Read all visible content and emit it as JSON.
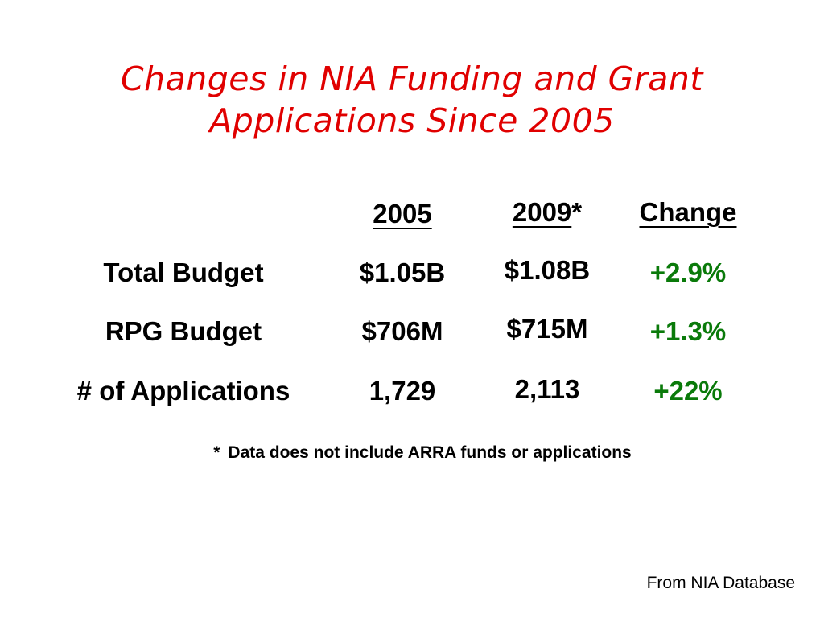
{
  "slide": {
    "title_line1": "Changes in NIA Funding and Grant",
    "title_line2": "Applications Since 2005",
    "title_color": "#e00000",
    "change_color": "#0a7a0a"
  },
  "table": {
    "headers": {
      "col_2005": "2005",
      "col_2009": "2009",
      "col_2009_marker": "*",
      "col_change": "Change"
    },
    "rows": [
      {
        "label": "Total Budget",
        "v2005": "$1.05B",
        "v2009": "$1.08B",
        "change": "+2.9%"
      },
      {
        "label": "RPG Budget",
        "v2005": "$706M",
        "v2009": "$715M",
        "change": "+1.3%"
      },
      {
        "label": "# of Applications",
        "v2005": "1,729",
        "v2009": "2,113",
        "change": "+22%"
      }
    ]
  },
  "footnote": {
    "marker": "*",
    "text": "Data does not include ARRA funds or applications"
  },
  "source": "From NIA Database"
}
